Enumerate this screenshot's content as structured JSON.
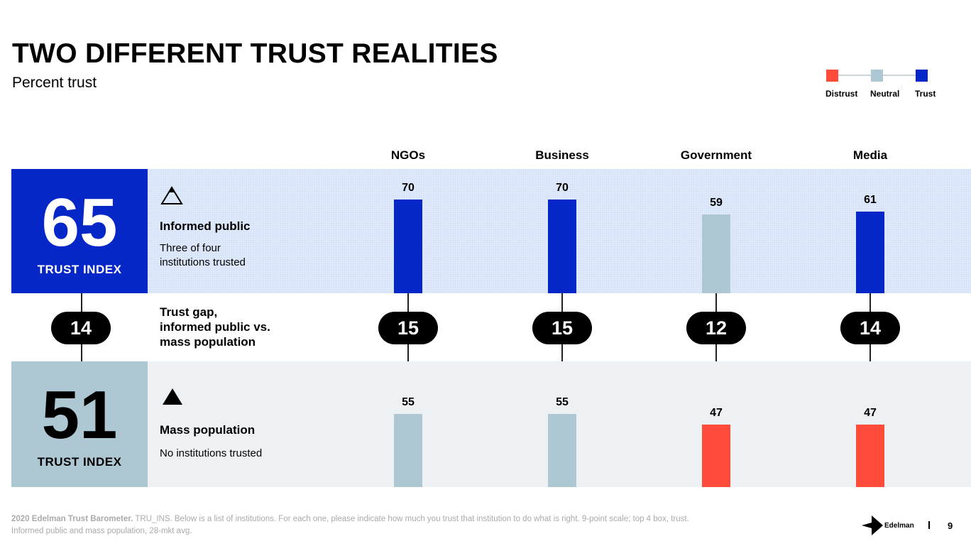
{
  "title": "TWO DIFFERENT TRUST REALITIES",
  "subtitle": "Percent trust",
  "colors": {
    "distrust": "#ff4b3a",
    "neutral": "#adc8d3",
    "trust": "#0527c7"
  },
  "legend": [
    {
      "label": "Distrust",
      "color": "#ff4b3a"
    },
    {
      "label": "Neutral",
      "color": "#adc8d3"
    },
    {
      "label": "Trust",
      "color": "#0527c7"
    }
  ],
  "informed": {
    "index": "65",
    "index_label": "TRUST INDEX",
    "title": "Informed public",
    "desc1": "Three of four",
    "desc2": "institutions trusted"
  },
  "mass": {
    "index": "51",
    "index_label": "TRUST INDEX",
    "title": "Mass population",
    "desc1": "No institutions trusted"
  },
  "gap": {
    "value": "14",
    "l1": "Trust gap,",
    "l2": "informed public vs.",
    "l3": "mass population"
  },
  "chart_data": {
    "type": "bar",
    "categories": [
      "NGOs",
      "Business",
      "Government",
      "Media"
    ],
    "series": [
      {
        "name": "Informed public",
        "values": [
          70,
          70,
          59,
          61
        ],
        "status": [
          "trust",
          "trust",
          "neutral",
          "trust"
        ]
      },
      {
        "name": "Mass population",
        "values": [
          55,
          55,
          47,
          47
        ],
        "status": [
          "neutral",
          "neutral",
          "distrust",
          "distrust"
        ]
      }
    ],
    "gaps": [
      15,
      15,
      12,
      14
    ],
    "ylim": [
      0,
      100
    ]
  },
  "footer": {
    "bold": "2020 Edelman Trust Barometer.",
    "l1": " TRU_INS. Below is a list of institutions. For each one, please indicate how much you trust that institution to do what is right. 9-point scale; top 4 box, trust.",
    "l2": "Informed public and mass population, 28-mkt avg.",
    "brand": "Edelman",
    "page": "9"
  }
}
